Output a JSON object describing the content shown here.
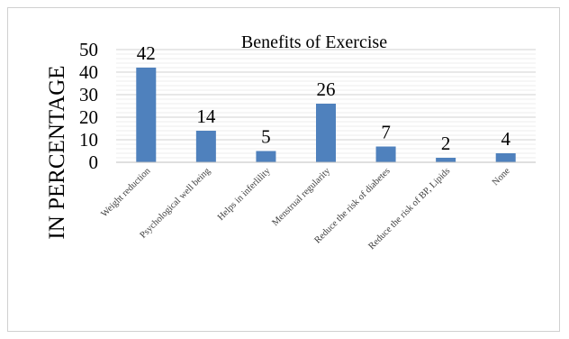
{
  "chart_data": {
    "type": "bar",
    "title": "Benefits of Exercise",
    "xlabel": "",
    "ylabel": "IN PERCENTAGE",
    "categories": [
      "Weight reduction",
      "Psychological well being",
      "Helps in  inferlility",
      "Menstrual regularity",
      "Reduce the risk of diabetes",
      "Reduce the risk of BP, Lipids",
      "None"
    ],
    "values": [
      42,
      14,
      5,
      26,
      7,
      2,
      4
    ],
    "data_labels": [
      "42",
      "14",
      "5",
      "26",
      "7",
      "2",
      "4"
    ],
    "ylim": [
      0,
      50
    ],
    "yticks": [
      "0",
      "10",
      "20",
      "30",
      "40",
      "50"
    ],
    "grid": true,
    "legend": "none",
    "colors": {
      "bar": "#4f81bd",
      "grid": "#d9d9d9",
      "text": "#000000"
    }
  }
}
